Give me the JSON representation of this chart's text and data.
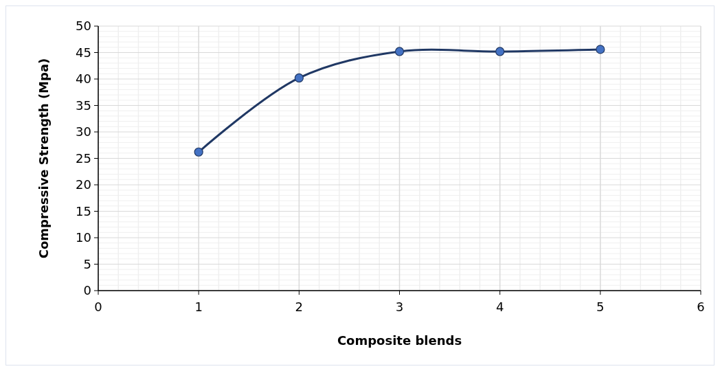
{
  "chart_data": {
    "type": "line",
    "xlabel": "Composite blends",
    "ylabel": "Compressive Strength (Mpa)",
    "x": [
      1,
      2,
      3,
      4,
      5
    ],
    "series": [
      {
        "color": "#203864",
        "values": [
          26.2,
          40.2,
          45.2,
          45.2,
          45.6
        ]
      }
    ],
    "xlim": [
      0,
      6
    ],
    "xticks": [
      0,
      1,
      2,
      3,
      4,
      5,
      6
    ],
    "ylim": [
      0,
      50
    ],
    "yticks": [
      0,
      5,
      10,
      15,
      20,
      25,
      30,
      35,
      40,
      45,
      50
    ],
    "grid": true,
    "marker": "circle",
    "line_style": "solid"
  }
}
